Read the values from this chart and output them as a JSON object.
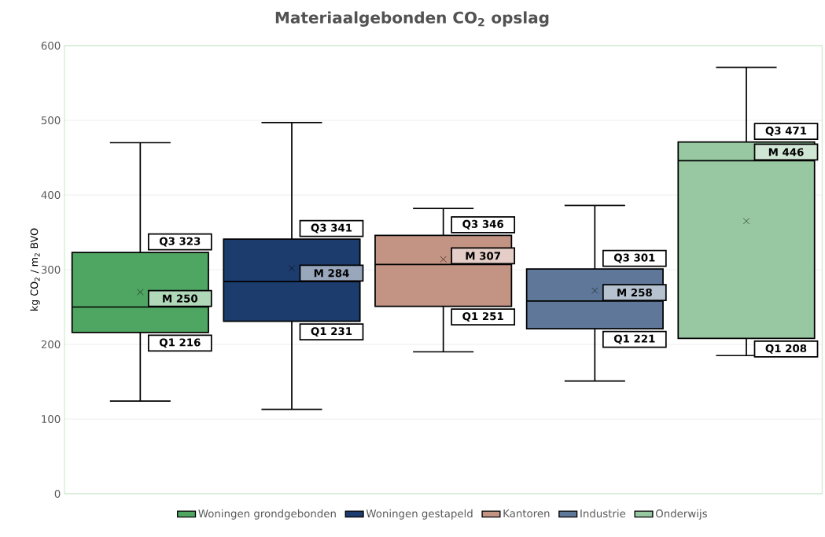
{
  "chart_data": {
    "type": "box",
    "title": "Materiaalgebonden CO$_{2}$ opslag",
    "ylabel": "kg CO$_{2}$ / m$_{2}$ BVO",
    "categories": [
      null,
      null,
      null,
      null,
      null
    ],
    "ylim": [
      0,
      600
    ],
    "yticks": [
      0,
      100,
      200,
      300,
      400,
      500,
      600
    ],
    "grid": "y",
    "legend": "bottom",
    "marker": "cross",
    "series": [
      {
        "name": "Woningen grondgebonden",
        "color": "#4fa562",
        "boxes": [
          {
            "low": 124,
            "q1": 216,
            "median": 250,
            "q3": 323,
            "high": 470,
            "mean": 270
          },
          null,
          null,
          null,
          null
        ],
        "value_labels": [
          [
            "Q1 216",
            "M  250",
            "Q3 323"
          ],
          null,
          null,
          null,
          null
        ]
      },
      {
        "name": "Woningen gestapeld",
        "color": "#1c3c6d",
        "boxes": [
          null,
          {
            "low": 113,
            "q1": 231,
            "median": 284,
            "q3": 341,
            "high": 497,
            "mean": 302
          },
          null,
          null,
          null
        ],
        "value_labels": [
          null,
          [
            "Q1 231",
            "M  284",
            "Q3 341"
          ],
          null,
          null,
          null
        ]
      },
      {
        "name": "Kantoren",
        "color": "#c39383",
        "boxes": [
          null,
          null,
          {
            "low": 190,
            "q1": 251,
            "median": 307,
            "q3": 346,
            "high": 382,
            "mean": 314
          },
          null,
          null
        ],
        "value_labels": [
          null,
          null,
          [
            "Q1 251",
            "M  307",
            "Q3 346"
          ],
          null,
          null
        ]
      },
      {
        "name": "Industrie",
        "color": "#5f7899",
        "boxes": [
          null,
          null,
          null,
          {
            "low": 151,
            "q1": 221,
            "median": 258,
            "q3": 301,
            "high": 386,
            "mean": 272
          },
          null
        ],
        "value_labels": [
          null,
          null,
          null,
          [
            "Q1 221",
            "M  258",
            "Q3 301"
          ],
          null
        ]
      },
      {
        "name": "Onderwijs",
        "color": "#97c8a1",
        "boxes": [
          null,
          null,
          null,
          null,
          {
            "low": 185,
            "q1": 208,
            "median": 446,
            "q3": 471,
            "high": 571,
            "mean": 365
          }
        ],
        "value_labels": [
          null,
          null,
          null,
          null,
          [
            "Q1 208",
            "M  446",
            "Q3 471"
          ]
        ]
      }
    ]
  }
}
